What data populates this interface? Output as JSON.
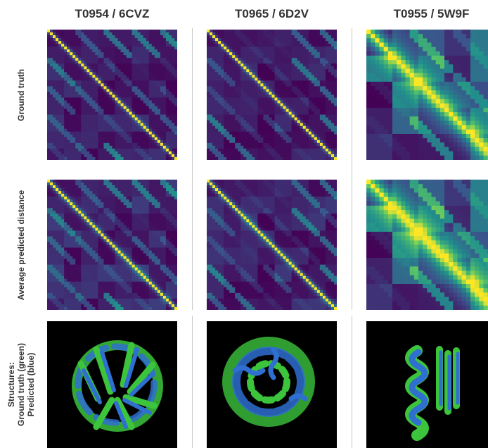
{
  "columns": [
    {
      "title": "T0954 / 6CVZ"
    },
    {
      "title": "T0965 / 6D2V"
    },
    {
      "title": "T0955 / 5W9F"
    }
  ],
  "rows": [
    {
      "label": "Ground truth"
    },
    {
      "label": "Average predicted distance"
    },
    {
      "label_lines": [
        "Structures:",
        "Ground truth (green)",
        "Predicted (blue)"
      ]
    }
  ],
  "colors": {
    "viridis_dark": "#440154",
    "viridis_mid": "#21918c",
    "viridis_bright": "#fde725",
    "structure_ground_truth": "#3cc43c",
    "structure_predicted": "#2f6fd0",
    "structure_background": "#000000"
  },
  "icons": [
    "protein-structure-ribbon"
  ]
}
